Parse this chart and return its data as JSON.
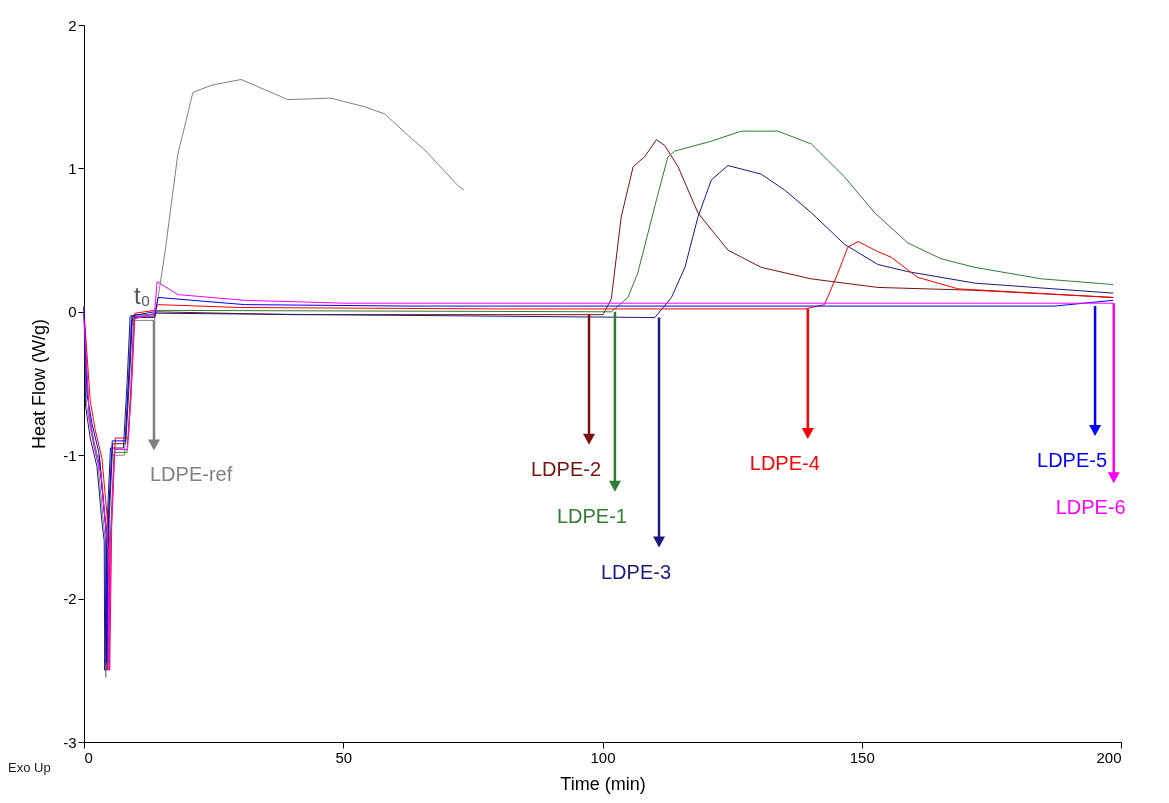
{
  "chart_data": {
    "type": "line",
    "xlabel": "Time (min)",
    "ylabel": "Heat Flow (W/g)",
    "xlim": [
      0,
      200
    ],
    "xticks": [
      0,
      50,
      100,
      150,
      200
    ],
    "ylim": [
      -3,
      2
    ],
    "yticks": [
      -3,
      -2,
      -1,
      0,
      1,
      2
    ],
    "grid": false,
    "line_style": "solid",
    "series": [
      {
        "color": "#808080",
        "x": [
          0,
          0.45,
          1.4,
          2.7,
          3.7,
          4.1,
          4.2,
          4.6,
          5.3,
          7.8,
          8.5,
          9.1,
          13.6,
          15.6,
          18.1,
          19.4,
          21,
          24.6,
          30.3,
          34.8,
          39.3,
          47.6,
          54.1,
          58,
          63.1,
          65.7,
          72.1,
          73.3
        ],
        "values": [
          0.05,
          -0.64,
          -0.85,
          -1.06,
          -1.45,
          -1.59,
          -2.55,
          -1.5,
          -1.0,
          -1.0,
          -0.52,
          -0.06,
          -0.06,
          0.41,
          1.1,
          1.29,
          1.53,
          1.58,
          1.62,
          1.55,
          1.48,
          1.49,
          1.43,
          1.38,
          1.21,
          1.13,
          0.88,
          0.85
        ]
      },
      {
        "color": "#7b1010",
        "x": [
          2.95,
          3.95,
          4.35,
          4.45,
          4.85,
          5.55,
          8.05,
          8.75,
          9.35,
          13.6,
          14,
          40,
          100.1,
          101.7,
          103.6,
          105.9,
          106.8,
          108.1,
          110.4,
          112,
          114.6,
          118.4,
          124.2,
          130.6,
          140.2,
          153.1,
          171.8,
          198.5
        ],
        "values": [
          -1.0,
          -1.4,
          -1.55,
          -2.5,
          -1.45,
          -0.92,
          -0.92,
          -0.48,
          -0.04,
          -0.04,
          0.0,
          -0.02,
          -0.02,
          0.09,
          0.66,
          1.01,
          1.04,
          1.08,
          1.2,
          1.16,
          1.01,
          0.69,
          0.43,
          0.31,
          0.23,
          0.17,
          0.15,
          0.1
        ]
      },
      {
        "color": "#2e7d32",
        "x": [
          0,
          0.95,
          1.9,
          3.2,
          4.2,
          4.6,
          4.7,
          5.1,
          5.8,
          8.3,
          9,
          9.6,
          13.6,
          14,
          101.7,
          104.9,
          106.8,
          110.4,
          112.6,
          113.9,
          121,
          126.8,
          133.8,
          140.3,
          146.7,
          152.5,
          158.9,
          165.3,
          171.8,
          184.6,
          198.5
        ],
        "values": [
          -0.02,
          -0.7,
          -0.9,
          -1.1,
          -1.5,
          -1.62,
          -2.45,
          -1.55,
          -0.98,
          -0.98,
          -0.55,
          -0.02,
          -0.02,
          0.01,
          0.0,
          0.1,
          0.27,
          0.78,
          1.08,
          1.12,
          1.19,
          1.26,
          1.26,
          1.17,
          0.94,
          0.69,
          0.48,
          0.37,
          0.31,
          0.23,
          0.19
        ]
      },
      {
        "color": "#1a1a80",
        "x": [
          0,
          0.3,
          1.2,
          2.5,
          3.5,
          3.9,
          4,
          4.4,
          5.1,
          7.6,
          8.3,
          8.9,
          13.6,
          14,
          110.1,
          113.3,
          115.9,
          118.4,
          121,
          124.2,
          130.6,
          135.1,
          140.3,
          146.7,
          153.1,
          158.9,
          171.8,
          198.5
        ],
        "values": [
          0.04,
          -0.66,
          -0.88,
          -1.08,
          -1.48,
          -1.6,
          -2.5,
          -1.52,
          -0.95,
          -0.95,
          -0.5,
          -0.03,
          0,
          -0.01,
          -0.04,
          0.1,
          0.31,
          0.66,
          0.92,
          1.02,
          0.96,
          0.85,
          0.69,
          0.47,
          0.33,
          0.28,
          0.2,
          0.13
        ]
      },
      {
        "color": "#ff0000",
        "x": [
          0,
          1.2,
          2.15,
          3.45,
          4.45,
          4.85,
          4.95,
          5.35,
          6.05,
          8.55,
          9.25,
          9.85,
          13.6,
          14.3,
          30,
          80,
          139,
          142.8,
          145.4,
          147.3,
          149.3,
          153.1,
          155.7,
          160.8,
          168.6,
          198.5
        ],
        "values": [
          0,
          -0.62,
          -0.82,
          -1.02,
          -1.42,
          -1.56,
          -2.5,
          -1.48,
          -0.88,
          -0.88,
          -0.45,
          -0.01,
          0.01,
          0.05,
          0.03,
          0.02,
          0.02,
          0.05,
          0.27,
          0.45,
          0.49,
          0.42,
          0.38,
          0.24,
          0.16,
          0.1
        ]
      },
      {
        "color": "#0000ff",
        "x": [
          0,
          0.6,
          1.55,
          2.85,
          3.85,
          4.25,
          4.3,
          4.75,
          5.45,
          7.95,
          8.65,
          9.25,
          13.6,
          14.3,
          31,
          63,
          187.2,
          198.5
        ],
        "values": [
          0.03,
          -0.58,
          -0.78,
          -0.98,
          -1.38,
          -1.52,
          -2.45,
          -1.42,
          -0.9,
          -0.9,
          -0.44,
          -0.03,
          -0.03,
          0.1,
          0.05,
          0.04,
          0.04,
          0.08
        ]
      },
      {
        "color": "#ff00ff",
        "x": [
          0,
          1.05,
          2,
          3.3,
          4.3,
          4.7,
          4.8,
          5.2,
          5.9,
          8.4,
          9.1,
          9.7,
          13.6,
          14.1,
          18.1,
          31,
          50.3,
          100,
          198.5
        ],
        "values": [
          -0.05,
          -0.74,
          -0.95,
          -1.14,
          -1.55,
          -1.66,
          -2.5,
          -1.58,
          -0.96,
          -0.96,
          -0.58,
          -0.05,
          -0.01,
          0.21,
          0.12,
          0.08,
          0.06,
          0.06,
          0.06
        ]
      }
    ],
    "annotations": [
      "Exo Up",
      {
        "text": "t₀",
        "x": 13.6,
        "y": 0
      },
      {
        "text": "LDPE-ref",
        "x": 13.5,
        "y": -0.06
      },
      {
        "text": "LDPE-2",
        "x": 97.4,
        "y": -0.02
      },
      {
        "text": "LDPE-1",
        "x": 102.4,
        "y": 0.0
      },
      {
        "text": "LDPE-3",
        "x": 110.9,
        "y": -0.04
      },
      {
        "text": "LDPE-4",
        "x": 139.6,
        "y": 0.02
      },
      {
        "text": "LDPE-5",
        "x": 195,
        "y": 0.04
      },
      {
        "text": "LDPE-6",
        "x": 198.6,
        "y": 0.06
      }
    ]
  }
}
